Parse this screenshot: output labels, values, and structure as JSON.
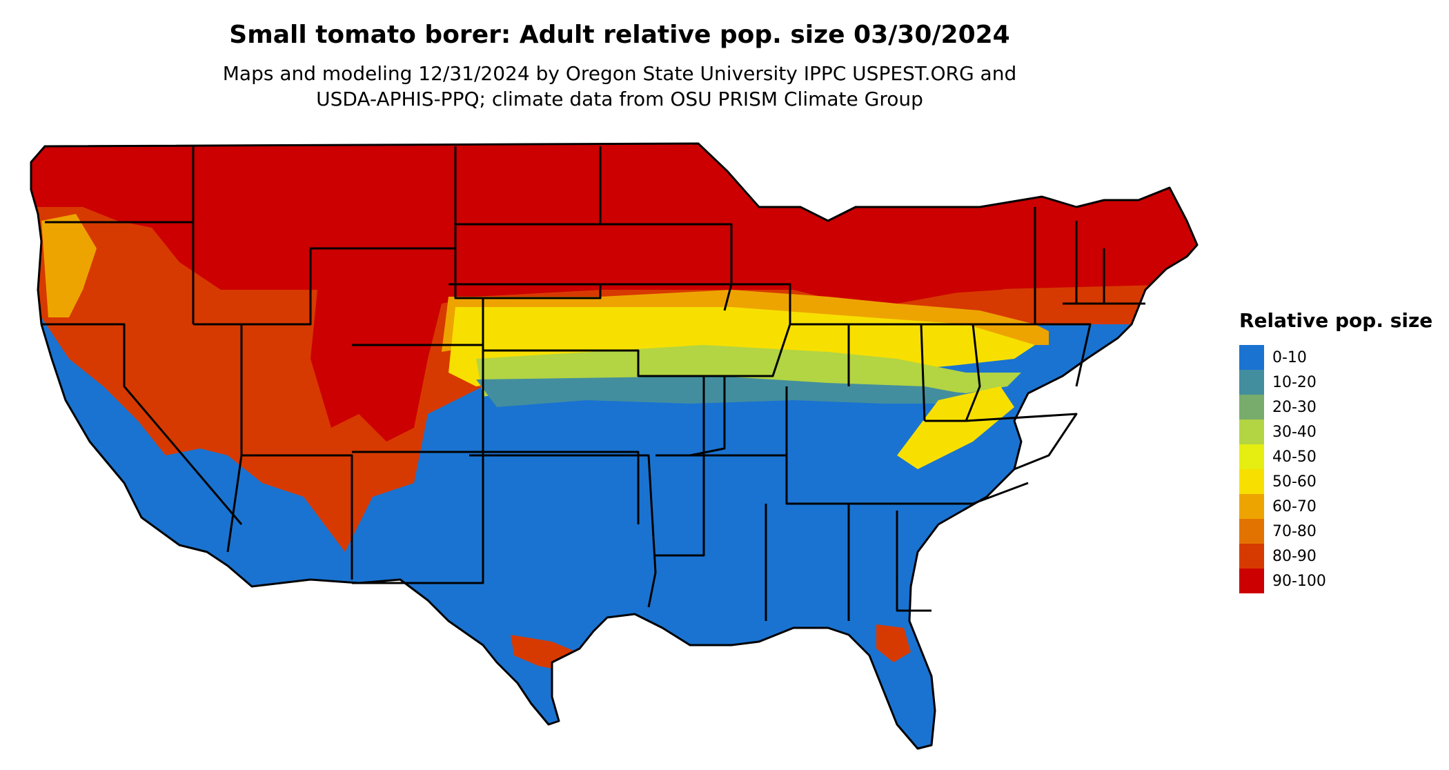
{
  "title": "Small tomato borer: Adult relative pop. size 03/30/2024",
  "subtitle_lines": [
    "Maps and modeling 12/31/2024 by Oregon State University IPPC USPEST.ORG and",
    "USDA-APHIS-PPQ; climate data from OSU PRISM Climate Group"
  ],
  "legend": {
    "title": "Relative pop. size",
    "items": [
      {
        "label": "0-10",
        "color": "#1a73d1"
      },
      {
        "label": "10-20",
        "color": "#438e9e"
      },
      {
        "label": "20-30",
        "color": "#78ac6c"
      },
      {
        "label": "30-40",
        "color": "#b3d443"
      },
      {
        "label": "40-50",
        "color": "#e5ee10"
      },
      {
        "label": "50-60",
        "color": "#f7e000"
      },
      {
        "label": "60-70",
        "color": "#eea400"
      },
      {
        "label": "70-80",
        "color": "#e37300"
      },
      {
        "label": "80-90",
        "color": "#d73a00"
      },
      {
        "label": "90-100",
        "color": "#cc0000"
      }
    ]
  },
  "map": {
    "region": "contiguous-united-states",
    "boundary_color": "#000000"
  }
}
